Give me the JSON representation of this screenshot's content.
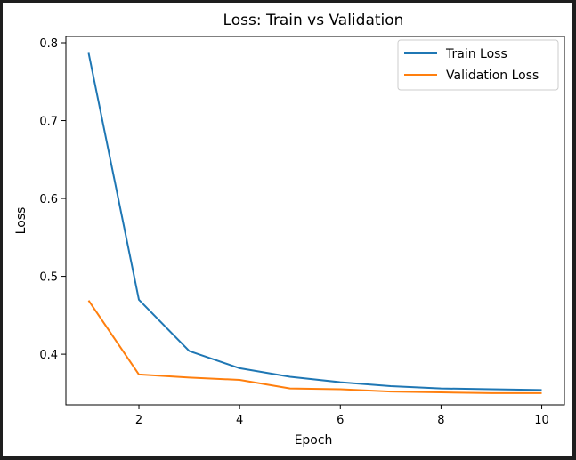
{
  "chart_data": {
    "type": "line",
    "title": "Loss: Train vs Validation",
    "xlabel": "Epoch",
    "ylabel": "Loss",
    "xlim": [
      0.55,
      10.45
    ],
    "ylim": [
      0.335,
      0.808
    ],
    "xticks": [
      2,
      4,
      6,
      8,
      10
    ],
    "yticks": [
      0.4,
      0.5,
      0.6,
      0.7,
      0.8
    ],
    "x": [
      1,
      2,
      3,
      4,
      5,
      6,
      7,
      8,
      9,
      10
    ],
    "grid": false,
    "legend_position": "top-right",
    "series": [
      {
        "name": "Train Loss",
        "color": "#1f77b4",
        "values": [
          0.787,
          0.47,
          0.404,
          0.382,
          0.371,
          0.364,
          0.359,
          0.356,
          0.355,
          0.354
        ]
      },
      {
        "name": "Validation Loss",
        "color": "#ff7f0e",
        "values": [
          0.469,
          0.374,
          0.37,
          0.367,
          0.356,
          0.355,
          0.352,
          0.351,
          0.35,
          0.35
        ]
      }
    ]
  }
}
